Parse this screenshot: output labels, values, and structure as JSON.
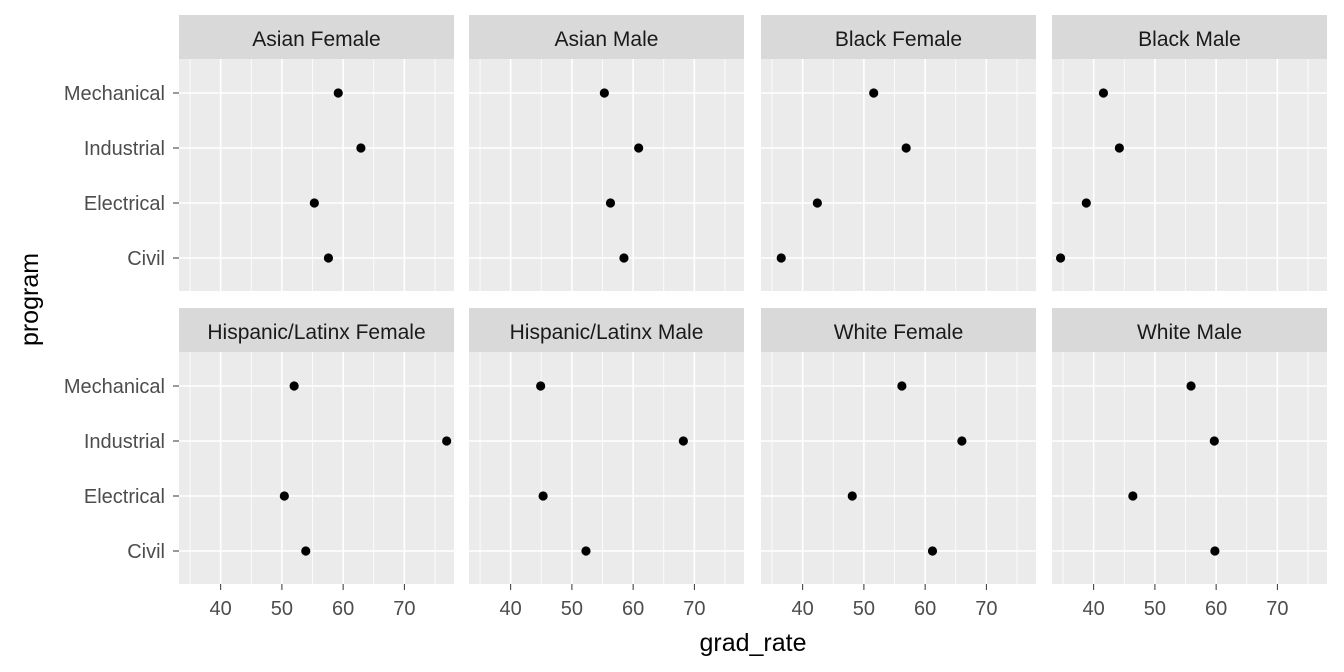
{
  "chart_data": {
    "type": "scatter",
    "xlabel": "grad_rate",
    "ylabel": "program",
    "xlim": [
      33.2,
      78.1
    ],
    "x_ticks": [
      40,
      50,
      60,
      70
    ],
    "categories": [
      "Mechanical",
      "Industrial",
      "Electrical",
      "Civil"
    ],
    "grid": true,
    "legend": "none",
    "panels": [
      {
        "name": "Asian Female",
        "values": [
          59.2,
          62.9,
          55.3,
          57.6
        ]
      },
      {
        "name": "Asian Male",
        "values": [
          55.3,
          60.9,
          56.3,
          58.5
        ]
      },
      {
        "name": "Black Female",
        "values": [
          51.6,
          56.9,
          42.4,
          36.5
        ]
      },
      {
        "name": "Black Male",
        "values": [
          41.6,
          44.2,
          38.8,
          34.6
        ]
      },
      {
        "name": "Hispanic/Latinx Female",
        "values": [
          52.0,
          76.9,
          50.4,
          53.9
        ]
      },
      {
        "name": "Hispanic/Latinx Male",
        "values": [
          44.9,
          68.2,
          45.3,
          52.3
        ]
      },
      {
        "name": "White Female",
        "values": [
          56.2,
          66.0,
          48.1,
          61.2
        ]
      },
      {
        "name": "White Male",
        "values": [
          55.9,
          59.7,
          46.4,
          59.8
        ]
      }
    ],
    "colors": {
      "panel_bg": "#ebebeb",
      "strip_bg": "#d9d9d9",
      "grid": "#ffffff",
      "point": "#000000",
      "tick": "#333333"
    }
  }
}
